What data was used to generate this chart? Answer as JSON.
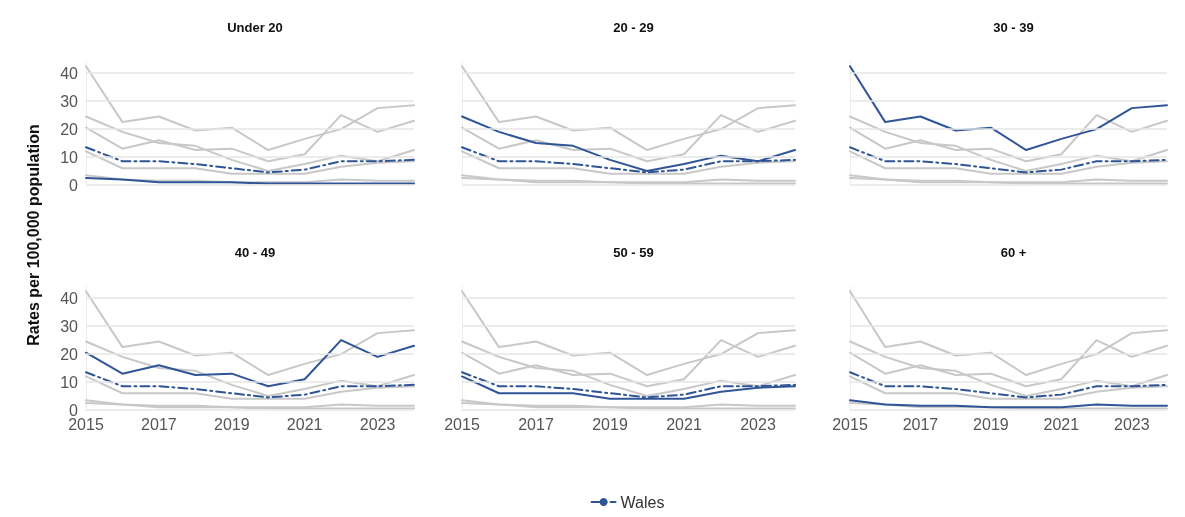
{
  "chart_data": [
    {
      "type": "line",
      "title": "Under 20",
      "ylabel": "Rates per 100,000 population",
      "x": [
        2015,
        2016,
        2017,
        2018,
        2019,
        2020,
        2021,
        2022,
        2023,
        2024
      ],
      "xlim": [
        2015,
        2024
      ],
      "xticks": [
        2015,
        2017,
        2019,
        2021,
        2023
      ],
      "ylim": [
        0,
        44
      ],
      "yticks": [
        0,
        10,
        20,
        30,
        40
      ],
      "grid": "y",
      "tick_labels": "y",
      "marker": "none",
      "series": [
        {
          "color": "#c8c8c8",
          "values": [
            24.5,
            19,
            15,
            14,
            9,
            5,
            7.5,
            10.5,
            8.5,
            12.5
          ]
        },
        {
          "color": "#c8c8c8",
          "values": [
            42.5,
            22.5,
            24.5,
            19.5,
            20.5,
            12.5,
            16.5,
            20,
            27.5,
            28.5
          ]
        },
        {
          "color": "#c8c8c8",
          "values": [
            20.5,
            13,
            16,
            12.5,
            13,
            8.5,
            11,
            25,
            19,
            23
          ]
        },
        {
          "color": "#c8c8c8",
          "values": [
            12,
            6,
            6,
            6,
            4,
            4,
            4,
            6.5,
            8,
            8.5
          ]
        },
        {
          "color": "#c8c8c8",
          "values": [
            3.5,
            2,
            1.5,
            1.5,
            1,
            1,
            1,
            2,
            1.5,
            1.5
          ]
        },
        {
          "color": "#2f5597",
          "values": [
            2.5,
            2,
            1,
            1,
            1,
            0.5,
            0.5,
            0.5,
            0.5,
            0.5
          ]
        },
        {
          "color": "#2f5597",
          "line_style": "dashed",
          "values": [
            13.5,
            8.5,
            8.5,
            7.5,
            6,
            4.5,
            5.5,
            8.5,
            8.5,
            9
          ]
        }
      ]
    },
    {
      "type": "line",
      "title": "20 - 29",
      "x": [
        2015,
        2016,
        2017,
        2018,
        2019,
        2020,
        2021,
        2022,
        2023,
        2024
      ],
      "xlim": [
        2015,
        2024
      ],
      "xticks": [
        2015,
        2017,
        2019,
        2021,
        2023
      ],
      "ylim": [
        0,
        44
      ],
      "yticks": [
        0,
        10,
        20,
        30,
        40
      ],
      "grid": "y",
      "tick_labels": false,
      "marker": "none",
      "series": [
        {
          "color": "#c8c8c8",
          "values": [
            2.5,
            2,
            1,
            1,
            1,
            0.5,
            0.5,
            0.5,
            0.5,
            0.5
          ]
        },
        {
          "color": "#c8c8c8",
          "values": [
            42.5,
            22.5,
            24.5,
            19.5,
            20.5,
            12.5,
            16.5,
            20,
            27.5,
            28.5
          ]
        },
        {
          "color": "#c8c8c8",
          "values": [
            20.5,
            13,
            16,
            12.5,
            13,
            8.5,
            11,
            25,
            19,
            23
          ]
        },
        {
          "color": "#c8c8c8",
          "values": [
            12,
            6,
            6,
            6,
            4,
            4,
            4,
            6.5,
            8,
            8.5
          ]
        },
        {
          "color": "#c8c8c8",
          "values": [
            3.5,
            2,
            1.5,
            1.5,
            1,
            1,
            1,
            2,
            1.5,
            1.5
          ]
        },
        {
          "color": "#2f5597",
          "values": [
            24.5,
            19,
            15,
            14,
            9,
            5,
            7.5,
            10.5,
            8.5,
            12.5
          ]
        },
        {
          "color": "#2f5597",
          "line_style": "dashed",
          "values": [
            13.5,
            8.5,
            8.5,
            7.5,
            6,
            4.5,
            5.5,
            8.5,
            8.5,
            9
          ]
        }
      ]
    },
    {
      "type": "line",
      "title": "30 - 39",
      "x": [
        2015,
        2016,
        2017,
        2018,
        2019,
        2020,
        2021,
        2022,
        2023,
        2024
      ],
      "xlim": [
        2015,
        2024
      ],
      "xticks": [
        2015,
        2017,
        2019,
        2021,
        2023
      ],
      "ylim": [
        0,
        44
      ],
      "yticks": [
        0,
        10,
        20,
        30,
        40
      ],
      "grid": "y",
      "tick_labels": false,
      "marker": "none",
      "series": [
        {
          "color": "#c8c8c8",
          "values": [
            2.5,
            2,
            1,
            1,
            1,
            0.5,
            0.5,
            0.5,
            0.5,
            0.5
          ]
        },
        {
          "color": "#c8c8c8",
          "values": [
            24.5,
            19,
            15,
            14,
            9,
            5,
            7.5,
            10.5,
            8.5,
            12.5
          ]
        },
        {
          "color": "#c8c8c8",
          "values": [
            20.5,
            13,
            16,
            12.5,
            13,
            8.5,
            11,
            25,
            19,
            23
          ]
        },
        {
          "color": "#c8c8c8",
          "values": [
            12,
            6,
            6,
            6,
            4,
            4,
            4,
            6.5,
            8,
            8.5
          ]
        },
        {
          "color": "#c8c8c8",
          "values": [
            3.5,
            2,
            1.5,
            1.5,
            1,
            1,
            1,
            2,
            1.5,
            1.5
          ]
        },
        {
          "color": "#2f5597",
          "values": [
            42.5,
            22.5,
            24.5,
            19.5,
            20.5,
            12.5,
            16.5,
            20,
            27.5,
            28.5
          ]
        },
        {
          "color": "#2f5597",
          "line_style": "dashed",
          "values": [
            13.5,
            8.5,
            8.5,
            7.5,
            6,
            4.5,
            5.5,
            8.5,
            8.5,
            9
          ]
        }
      ]
    },
    {
      "type": "line",
      "title": "40 - 49",
      "x": [
        2015,
        2016,
        2017,
        2018,
        2019,
        2020,
        2021,
        2022,
        2023,
        2024
      ],
      "xlim": [
        2015,
        2024
      ],
      "xticks": [
        2015,
        2017,
        2019,
        2021,
        2023
      ],
      "ylim": [
        0,
        44
      ],
      "yticks": [
        0,
        10,
        20,
        30,
        40
      ],
      "grid": "y",
      "marker": "none",
      "series": [
        {
          "color": "#c8c8c8",
          "values": [
            2.5,
            2,
            1,
            1,
            1,
            0.5,
            0.5,
            0.5,
            0.5,
            0.5
          ]
        },
        {
          "color": "#c8c8c8",
          "values": [
            24.5,
            19,
            15,
            14,
            9,
            5,
            7.5,
            10.5,
            8.5,
            12.5
          ]
        },
        {
          "color": "#c8c8c8",
          "values": [
            42.5,
            22.5,
            24.5,
            19.5,
            20.5,
            12.5,
            16.5,
            20,
            27.5,
            28.5
          ]
        },
        {
          "color": "#c8c8c8",
          "values": [
            12,
            6,
            6,
            6,
            4,
            4,
            4,
            6.5,
            8,
            8.5
          ]
        },
        {
          "color": "#c8c8c8",
          "values": [
            3.5,
            2,
            1.5,
            1.5,
            1,
            1,
            1,
            2,
            1.5,
            1.5
          ]
        },
        {
          "color": "#2f5597",
          "values": [
            20.5,
            13,
            16,
            12.5,
            13,
            8.5,
            11,
            25,
            19,
            23
          ]
        },
        {
          "color": "#2f5597",
          "line_style": "dashed",
          "values": [
            13.5,
            8.5,
            8.5,
            7.5,
            6,
            4.5,
            5.5,
            8.5,
            8.5,
            9
          ]
        }
      ]
    },
    {
      "type": "line",
      "title": "50 - 59",
      "x": [
        2015,
        2016,
        2017,
        2018,
        2019,
        2020,
        2021,
        2022,
        2023,
        2024
      ],
      "xlim": [
        2015,
        2024
      ],
      "xticks": [
        2015,
        2017,
        2019,
        2021,
        2023
      ],
      "ylim": [
        0,
        44
      ],
      "yticks": [
        0,
        10,
        20,
        30,
        40
      ],
      "grid": "y",
      "tick_labels": "x",
      "marker": "none",
      "legend": "bottom",
      "series": [
        {
          "color": "#c8c8c8",
          "values": [
            2.5,
            2,
            1,
            1,
            1,
            0.5,
            0.5,
            0.5,
            0.5,
            0.5
          ]
        },
        {
          "color": "#c8c8c8",
          "values": [
            24.5,
            19,
            15,
            14,
            9,
            5,
            7.5,
            10.5,
            8.5,
            12.5
          ]
        },
        {
          "color": "#c8c8c8",
          "values": [
            42.5,
            22.5,
            24.5,
            19.5,
            20.5,
            12.5,
            16.5,
            20,
            27.5,
            28.5
          ]
        },
        {
          "color": "#c8c8c8",
          "values": [
            20.5,
            13,
            16,
            12.5,
            13,
            8.5,
            11,
            25,
            19,
            23
          ]
        },
        {
          "color": "#c8c8c8",
          "values": [
            3.5,
            2,
            1.5,
            1.5,
            1,
            1,
            1,
            2,
            1.5,
            1.5
          ]
        },
        {
          "color": "#2f5597",
          "values": [
            12,
            6,
            6,
            6,
            4,
            4,
            4,
            6.5,
            8,
            8.5
          ]
        },
        {
          "name": "Wales",
          "color": "#2f5597",
          "line_style": "dashed",
          "values": [
            13.5,
            8.5,
            8.5,
            7.5,
            6,
            4.5,
            5.5,
            8.5,
            8.5,
            9
          ]
        }
      ]
    },
    {
      "type": "line",
      "title": "60 +",
      "x": [
        2015,
        2016,
        2017,
        2018,
        2019,
        2020,
        2021,
        2022,
        2023,
        2024
      ],
      "xlim": [
        2015,
        2024
      ],
      "xticks": [
        2015,
        2017,
        2019,
        2021,
        2023
      ],
      "ylim": [
        0,
        44
      ],
      "yticks": [
        0,
        10,
        20,
        30,
        40
      ],
      "grid": "y",
      "tick_labels": "x",
      "marker": "none",
      "series": [
        {
          "color": "#c8c8c8",
          "values": [
            2.5,
            2,
            1,
            1,
            1,
            0.5,
            0.5,
            0.5,
            0.5,
            0.5
          ]
        },
        {
          "color": "#c8c8c8",
          "values": [
            24.5,
            19,
            15,
            14,
            9,
            5,
            7.5,
            10.5,
            8.5,
            12.5
          ]
        },
        {
          "color": "#c8c8c8",
          "values": [
            42.5,
            22.5,
            24.5,
            19.5,
            20.5,
            12.5,
            16.5,
            20,
            27.5,
            28.5
          ]
        },
        {
          "color": "#c8c8c8",
          "values": [
            20.5,
            13,
            16,
            12.5,
            13,
            8.5,
            11,
            25,
            19,
            23
          ]
        },
        {
          "color": "#c8c8c8",
          "values": [
            12,
            6,
            6,
            6,
            4,
            4,
            4,
            6.5,
            8,
            8.5
          ]
        },
        {
          "color": "#2f5597",
          "values": [
            3.5,
            2,
            1.5,
            1.5,
            1,
            1,
            1,
            2,
            1.5,
            1.5
          ]
        },
        {
          "color": "#2f5597",
          "line_style": "dashed",
          "values": [
            13.5,
            8.5,
            8.5,
            7.5,
            6,
            4.5,
            5.5,
            8.5,
            8.5,
            9
          ]
        }
      ]
    }
  ]
}
